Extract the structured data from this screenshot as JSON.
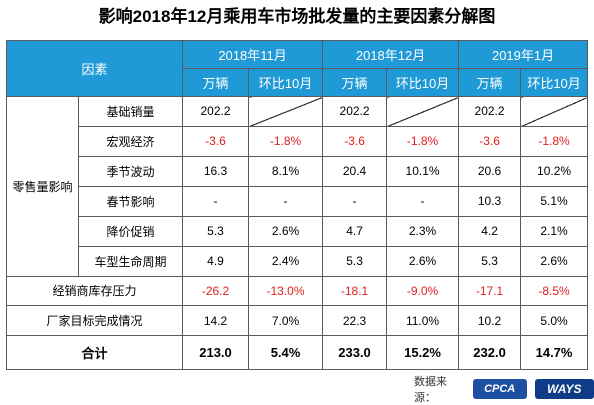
{
  "title": "影响2018年12月乘用车市场批发量的主要因素分解图",
  "header": {
    "factor_label": "因素",
    "periods": [
      "2018年11月",
      "2018年12月",
      "2019年1月"
    ],
    "unit_label": "万辆",
    "change_label": "环比10月"
  },
  "groups": {
    "retail": "零售量影响"
  },
  "rows": [
    {
      "name": "基础销量",
      "values": [
        "202.2",
        "",
        "202.2",
        "",
        "202.2",
        ""
      ]
    },
    {
      "name": "宏观经济",
      "values": [
        "-3.6",
        "-1.8%",
        "-3.6",
        "-1.8%",
        "-3.6",
        "-1.8%"
      ]
    },
    {
      "name": "季节波动",
      "values": [
        "16.3",
        "8.1%",
        "20.4",
        "10.1%",
        "20.6",
        "10.2%"
      ]
    },
    {
      "name": "春节影响",
      "values": [
        "-",
        "-",
        "-",
        "-",
        "10.3",
        "5.1%"
      ]
    },
    {
      "name": "降价促销",
      "values": [
        "5.3",
        "2.6%",
        "4.7",
        "2.3%",
        "4.2",
        "2.1%"
      ]
    },
    {
      "name": "车型生命周期",
      "values": [
        "4.9",
        "2.4%",
        "5.3",
        "2.6%",
        "5.3",
        "2.6%"
      ]
    },
    {
      "name": "经销商库存压力",
      "values": [
        "-26.2",
        "-13.0%",
        "-18.1",
        "-9.0%",
        "-17.1",
        "-8.5%"
      ]
    },
    {
      "name": "厂家目标完成情况",
      "values": [
        "14.2",
        "7.0%",
        "22.3",
        "11.0%",
        "10.2",
        "5.0%"
      ]
    },
    {
      "name": "合计",
      "values": [
        "213.0",
        "5.4%",
        "233.0",
        "15.2%",
        "232.0",
        "14.7%"
      ]
    }
  ],
  "source": {
    "label": "数据来源：",
    "logo1": "CPCA",
    "logo2": "WAYS"
  },
  "colors": {
    "header_bg": "#1f9ad6",
    "negative": "#e02020"
  }
}
